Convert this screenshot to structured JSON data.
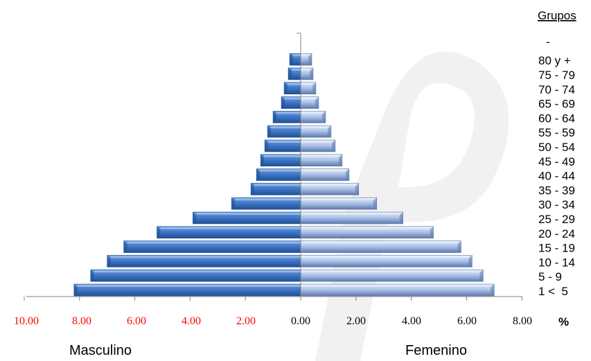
{
  "colors": {
    "male_dark": "#1f4f93",
    "male_mid": "#3d75c4",
    "male_light": "#6d9be0",
    "female_dark": "#5e78ad",
    "female_mid": "#a9c0e6",
    "female_light": "#e3ebf8",
    "negative_tick_color": "#ff0000",
    "positive_tick_color": "#000000",
    "axis_color": "#808080",
    "watermark": "#e6e6e6"
  },
  "chart_data": {
    "type": "bar",
    "orientation": "horizontal-population-pyramid",
    "groups_header": "Grupos",
    "groups_header_dash": "-",
    "categories": [
      "1 <  5",
      "5 - 9",
      "10 - 14",
      "15 - 19",
      "20 - 24",
      "25 - 29",
      "30 - 34",
      "35 - 39",
      "40 - 44",
      "45 - 49",
      "50 - 54",
      "55 - 59",
      "60 - 64",
      "65 - 69",
      "70 - 74",
      "75 - 79",
      "80 y +"
    ],
    "series": [
      {
        "name": "Masculino",
        "side": "left",
        "values": [
          8.2,
          7.6,
          7.0,
          6.4,
          5.2,
          3.9,
          2.5,
          1.8,
          1.6,
          1.45,
          1.3,
          1.2,
          1.0,
          0.7,
          0.6,
          0.45,
          0.4
        ]
      },
      {
        "name": "Femenino",
        "side": "right",
        "values": [
          7.0,
          6.6,
          6.2,
          5.8,
          4.8,
          3.7,
          2.75,
          2.1,
          1.75,
          1.5,
          1.25,
          1.1,
          0.9,
          0.65,
          0.55,
          0.45,
          0.4
        ]
      }
    ],
    "x_ticks_left": [
      "10.00",
      "8.00",
      "6.00",
      "4.00",
      "2.00"
    ],
    "x_ticks_right": [
      "0.00",
      "2.00",
      "4.00",
      "6.00",
      "8.00"
    ],
    "xlim": [
      -10,
      8
    ],
    "unit_label": "%",
    "grid": false
  }
}
